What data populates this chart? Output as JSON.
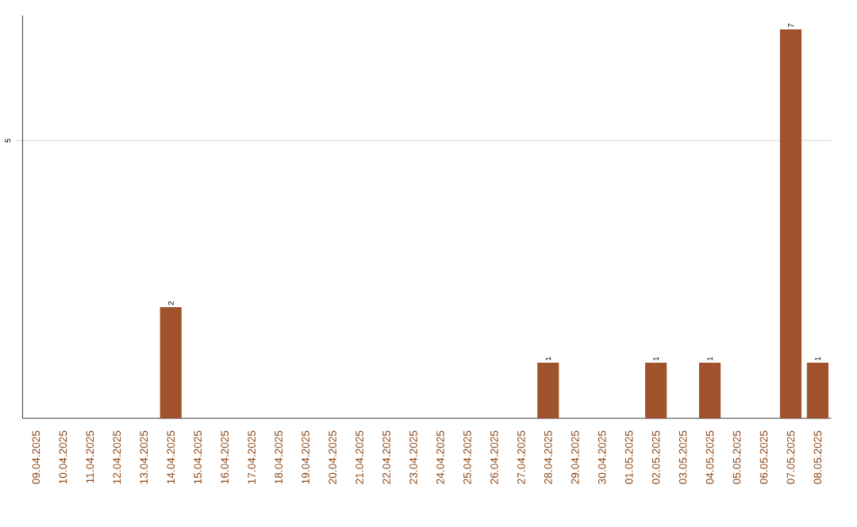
{
  "chart_data": {
    "type": "bar",
    "categories": [
      "09.04.2025",
      "10.04.2025",
      "11.04.2025",
      "12.04.2025",
      "13.04.2025",
      "14.04.2025",
      "15.04.2025",
      "16.04.2025",
      "17.04.2025",
      "18.04.2025",
      "19.04.2025",
      "20.04.2025",
      "21.04.2025",
      "22.04.2025",
      "23.04.2025",
      "24.04.2025",
      "25.04.2025",
      "26.04.2025",
      "27.04.2025",
      "28.04.2025",
      "29.04.2025",
      "30.04.2025",
      "01.05.2025",
      "02.05.2025",
      "03.05.2025",
      "04.05.2025",
      "05.05.2025",
      "06.05.2025",
      "07.05.2025",
      "08.05.2025"
    ],
    "values": [
      0,
      0,
      0,
      0,
      0,
      2,
      0,
      0,
      0,
      0,
      0,
      0,
      0,
      0,
      0,
      0,
      0,
      0,
      0,
      1,
      0,
      0,
      0,
      1,
      0,
      1,
      0,
      0,
      7,
      1
    ],
    "value_labels": [
      null,
      null,
      null,
      null,
      null,
      "2",
      null,
      null,
      null,
      null,
      null,
      null,
      null,
      null,
      null,
      null,
      null,
      null,
      null,
      "1",
      null,
      null,
      null,
      "1",
      null,
      "1",
      null,
      null,
      "7",
      "1"
    ],
    "color": "#a0522d",
    "ylim": [
      0,
      7.25
    ],
    "yticks": [
      5
    ],
    "grid": "y"
  }
}
